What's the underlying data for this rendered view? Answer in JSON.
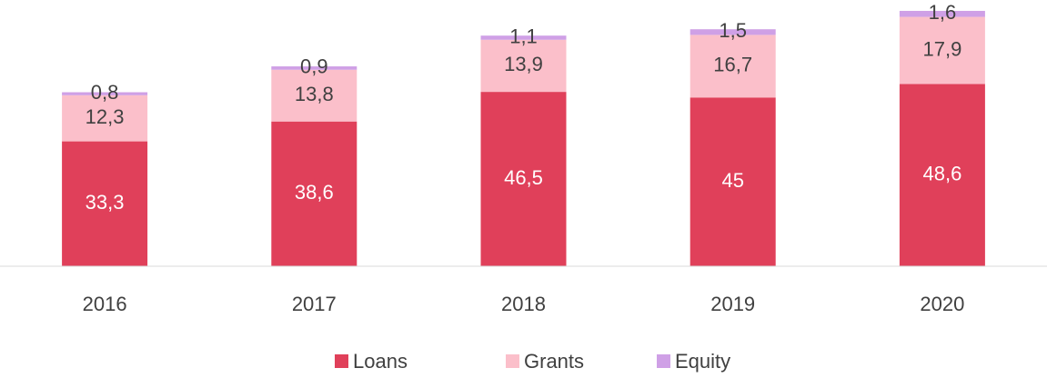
{
  "chart_data": {
    "type": "stacked-bar",
    "categories": [
      "2016",
      "2017",
      "2018",
      "2019",
      "2020"
    ],
    "series": [
      {
        "name": "Loans",
        "color": "#e0405a",
        "values": [
          33.3,
          38.6,
          46.5,
          45,
          48.6
        ],
        "value_labels": [
          "33,3",
          "38,6",
          "46,5",
          "45",
          "48,6"
        ]
      },
      {
        "name": "Grants",
        "color": "#fbbfca",
        "values": [
          12.3,
          13.8,
          13.9,
          16.7,
          17.9
        ],
        "value_labels": [
          "12,3",
          "13,8",
          "13,9",
          "16,7",
          "17,9"
        ]
      },
      {
        "name": "Equity",
        "color": "#cfa0e6",
        "values": [
          0.8,
          0.9,
          1.1,
          1.5,
          1.6
        ],
        "value_labels": [
          "0,8",
          "0,9",
          "1,1",
          "1,5",
          "1,6"
        ]
      }
    ],
    "ylim": [
      0,
      71
    ],
    "legend": "bottom"
  }
}
